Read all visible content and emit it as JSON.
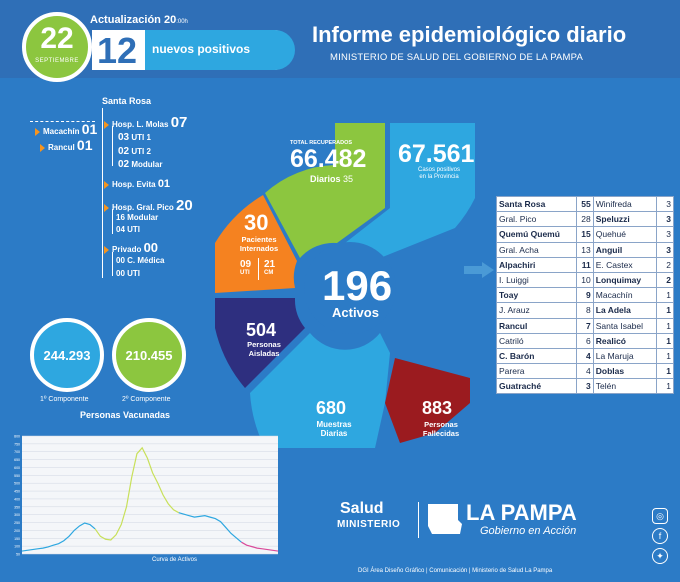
{
  "header": {
    "day": "22",
    "month": "SEPTIEMBRE",
    "update_label": "Actualización 20",
    "update_time": ":00h",
    "new_count": "12",
    "new_label": "nuevos positivos",
    "title": "Informe epidemiológico diario",
    "subtitle": "MINISTERIO DE SALUD DEL GOBIERNO DE LA PAMPA"
  },
  "tree": {
    "santa_rosa": "Santa Rosa",
    "macachin_label": "Macachín",
    "macachin_val": "01",
    "rancul_label": "Rancul",
    "rancul_val": "01",
    "molas_label": "Hosp. L. Molas",
    "molas_val": "07",
    "uti1_val": "03",
    "uti1_label": "UTI 1",
    "uti2_val": "02",
    "uti2_label": "UTI 2",
    "modular_val": "02",
    "modular_label": "Modular",
    "evita_label": "Hosp. Evita",
    "evita_val": "01",
    "pico_label": "Hosp. Gral. Pico",
    "pico_val": "20",
    "pico_mod": "16 Modular",
    "pico_uti": "04 UTI",
    "privado_label": "Privado",
    "privado_val": "00",
    "priv_cmed": "00 C. Médica",
    "priv_uti": "00 UTI"
  },
  "stats": {
    "recovered_label": "TOTAL RECUPERADOS",
    "recovered": "66.482",
    "recovered_daily_label": "Diarios",
    "recovered_daily": "35",
    "cases": "67.561",
    "cases_label1": "Casos positivos",
    "cases_label2": "en la Provincia",
    "hosp": "30",
    "hosp_label1": "Pacientes",
    "hosp_label2": "Internados",
    "uti_val": "09",
    "uti_lbl": "UTI",
    "cm_val": "21",
    "cm_lbl": "CM",
    "active": "196",
    "active_label": "Activos",
    "isolated": "504",
    "isolated_label1": "Personas",
    "isolated_label2": "Aisladas",
    "samples": "680",
    "samples_label1": "Muestras",
    "samples_label2": "Diarias",
    "deaths": "883",
    "deaths_label1": "Personas",
    "deaths_label2": "Fallecidas"
  },
  "vaccines": {
    "comp1": "244.293",
    "comp1_label": "1º Componente",
    "comp2": "210.455",
    "comp2_label": "2º Componente",
    "title": "Personas Vacunadas",
    "chart_label": "Curva de Activos"
  },
  "table": [
    [
      "Santa Rosa",
      "55",
      "Winifreda",
      "3"
    ],
    [
      "Gral. Pico",
      "28",
      "Speluzzi",
      "3"
    ],
    [
      "Quemú Quemú",
      "15",
      "Quehué",
      "3"
    ],
    [
      "Gral. Acha",
      "13",
      "Anguil",
      "3"
    ],
    [
      "Alpachiri",
      "11",
      "E. Castex",
      "2"
    ],
    [
      "I. Luiggi",
      "10",
      "Lonquimay",
      "2"
    ],
    [
      "Toay",
      "9",
      "Macachín",
      "1"
    ],
    [
      "J. Arauz",
      "8",
      "La Adela",
      "1"
    ],
    [
      "Rancul",
      "7",
      "Santa Isabel",
      "1"
    ],
    [
      "Catriló",
      "6",
      "Realicó",
      "1"
    ],
    [
      "C. Barón",
      "4",
      "La Maruja",
      "1"
    ],
    [
      "Parera",
      "4",
      "Doblas",
      "1"
    ],
    [
      "Guatraché",
      "3",
      "Telén",
      "1"
    ]
  ],
  "table_bold_left": [
    0,
    2,
    4,
    6,
    8,
    10,
    12
  ],
  "table_bold_right": [
    1,
    3,
    5,
    7,
    9,
    11
  ],
  "footer": {
    "salud": "Salud",
    "ministerio": "MINISTERIO",
    "lapampa": "LA PAMPA",
    "gobierno": "Gobierno en Acción",
    "credits": "DGI Área Diseño Gráfico  |  Comunicación  |  Ministerio de Salud La Pampa"
  },
  "chart_data": {
    "type": "line",
    "title": "Curva de Activos",
    "y_ticks": [
      "800",
      "750",
      "700",
      "650",
      "600",
      "550",
      "500",
      "450",
      "400",
      "350",
      "300",
      "250",
      "200",
      "150",
      "100",
      "50"
    ],
    "series": [
      {
        "values": [
          20,
          25,
          30,
          35,
          40,
          48,
          60,
          70,
          90,
          120,
          160,
          190,
          210,
          200,
          170,
          120,
          100,
          95,
          130,
          200,
          320,
          520,
          680,
          720,
          650,
          550,
          480,
          400,
          340,
          300,
          280,
          270,
          260,
          250,
          255,
          260,
          250,
          240,
          220,
          180,
          140,
          110,
          80,
          60,
          50,
          40,
          35,
          30,
          25,
          20
        ]
      }
    ],
    "colors": {
      "line1": "#2ea7e0",
      "line2": "#c8e05a",
      "line3": "#d94a9a"
    }
  }
}
